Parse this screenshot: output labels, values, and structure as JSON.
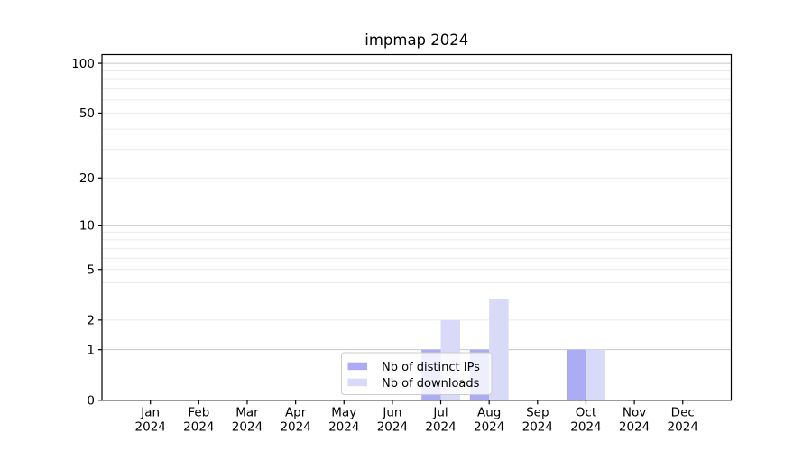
{
  "chart_data": {
    "type": "bar",
    "title": "impmap 2024",
    "year_label": "2024",
    "categories": [
      "Jan",
      "Feb",
      "Mar",
      "Apr",
      "May",
      "Jun",
      "Jul",
      "Aug",
      "Sep",
      "Oct",
      "Nov",
      "Dec"
    ],
    "series": [
      {
        "name": "Nb of distinct IPs",
        "color": "#acacf5",
        "values": [
          0,
          0,
          0,
          0,
          0,
          0,
          1,
          1,
          0,
          1,
          0,
          0
        ]
      },
      {
        "name": "Nb of downloads",
        "color": "#d9d9f8",
        "values": [
          0,
          0,
          0,
          0,
          0,
          0,
          2,
          3,
          0,
          1,
          0,
          0
        ]
      }
    ],
    "yscale": "log(1+x)",
    "ylim": [
      0,
      112
    ],
    "ytick_values": [
      0,
      1,
      2,
      5,
      10,
      20,
      50,
      100
    ],
    "major_grid_values": [
      1,
      10,
      100
    ],
    "minor_grid_values": [
      2,
      3,
      4,
      5,
      6,
      7,
      8,
      9,
      20,
      30,
      40,
      50,
      60,
      70,
      80,
      90
    ],
    "xlabel": "",
    "ylabel": "",
    "grid": "on",
    "legend": {
      "position": "lower center",
      "entries": [
        "Nb of distinct IPs",
        "Nb of downloads"
      ]
    },
    "colors": {
      "grid_major": "#c9c9c9",
      "grid_minor": "#ebebeb",
      "axis": "#000000",
      "background": "#ffffff",
      "legend_border": "#cccccc",
      "legend_fill": "rgba(255,255,255,0.8)"
    }
  }
}
